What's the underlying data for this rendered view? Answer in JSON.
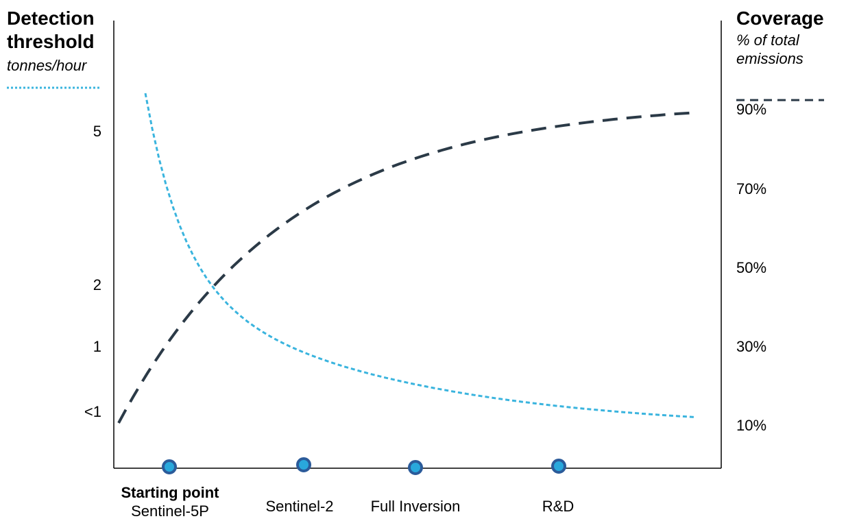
{
  "chart_data": {
    "type": "line",
    "left_axis": {
      "title": "Detection threshold",
      "unit": "tonnes/hour",
      "tick_labels": [
        "5",
        "2",
        "1",
        "<1"
      ]
    },
    "right_axis": {
      "title": "Coverage",
      "unit": "% of total emissions",
      "tick_labels": [
        "90%",
        "70%",
        "50%",
        "30%",
        "10%"
      ]
    },
    "x_categories": [
      {
        "bold": "Starting point",
        "label": "Sentinel-5P"
      },
      {
        "bold": "",
        "label": "Sentinel-2"
      },
      {
        "bold": "",
        "label": "Full Inversion"
      },
      {
        "bold": "",
        "label": "R&D"
      }
    ],
    "series": [
      {
        "name": "Detection threshold",
        "axis": "left",
        "style": "dotted",
        "color": "#3ab4de"
      },
      {
        "name": "Coverage",
        "axis": "right",
        "style": "dashed",
        "color": "#2b3a47"
      }
    ]
  },
  "colors": {
    "threshold_line": "#3ab4de",
    "coverage_line": "#2b3a47",
    "axis": "#000000",
    "marker_fill": "#29a8dc",
    "marker_stroke": "#2b5b9a"
  }
}
